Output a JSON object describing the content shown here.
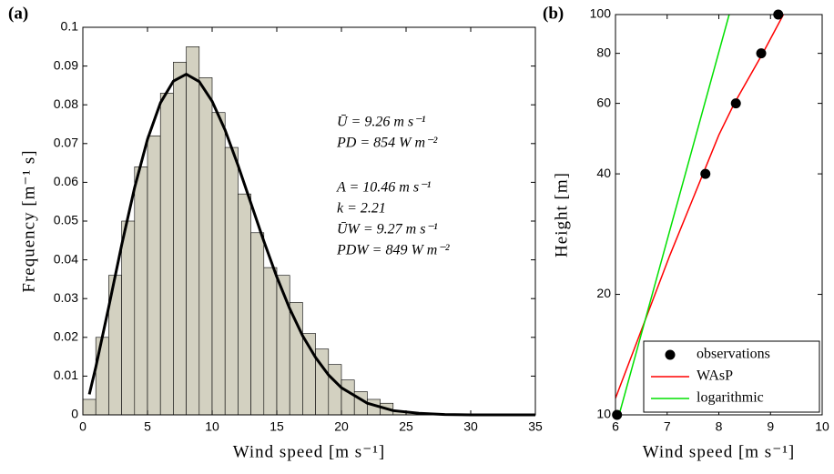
{
  "chart_data": [
    {
      "type": "histogram",
      "label": "(a)",
      "xlabel": "Wind speed [m s⁻¹]",
      "ylabel": "Frequency [m⁻¹ s]",
      "bins": [
        0,
        1,
        2,
        3,
        4,
        5,
        6,
        7,
        8,
        9,
        10,
        11,
        12,
        13,
        14,
        15,
        16,
        17,
        18,
        19,
        20,
        21,
        22,
        23,
        24,
        25,
        26
      ],
      "counts": [
        0.004,
        0.02,
        0.036,
        0.05,
        0.064,
        0.072,
        0.083,
        0.091,
        0.095,
        0.087,
        0.078,
        0.069,
        0.057,
        0.047,
        0.038,
        0.036,
        0.029,
        0.021,
        0.017,
        0.013,
        0.009,
        0.006,
        0.004,
        0.003,
        0.001,
        0.0005
      ],
      "color": "#d3d1c1",
      "fit": {
        "x": [
          0.5,
          1,
          2,
          3,
          4,
          5,
          6,
          7,
          8,
          9,
          10,
          11,
          12,
          13,
          14,
          15,
          16,
          17,
          18,
          19,
          20,
          22,
          24,
          26,
          28,
          30,
          35
        ],
        "values": [
          0.0053,
          0.0123,
          0.0278,
          0.0438,
          0.0586,
          0.0711,
          0.0805,
          0.0861,
          0.0879,
          0.086,
          0.0809,
          0.0735,
          0.0644,
          0.0546,
          0.0448,
          0.0356,
          0.0274,
          0.0204,
          0.0148,
          0.0103,
          0.007,
          0.003,
          0.0011,
          0.0004,
          0.0001,
          0.0,
          0.0
        ],
        "color": "#000000"
      },
      "annotations": [
        "Ū = 9.26 m s⁻¹",
        "PD = 854 W m⁻²",
        "A = 10.46 m s⁻¹",
        "k = 2.21",
        "ŪW = 9.27 m s⁻¹",
        "PDW = 849 W m⁻²"
      ],
      "xlim": [
        0,
        35
      ],
      "ylim": [
        0,
        0.1
      ],
      "xticks": [
        0,
        5,
        10,
        15,
        20,
        25,
        30,
        35
      ],
      "yticks": [
        0,
        0.01,
        0.02,
        0.03,
        0.04,
        0.05,
        0.06,
        0.07,
        0.08,
        0.09,
        0.1
      ]
    },
    {
      "type": "line",
      "label": "(b)",
      "xlabel": "Wind speed [m s⁻¹]",
      "ylabel": "Height [m]",
      "ylog": true,
      "legend": "lower right",
      "series": [
        {
          "name": "observations",
          "color": "#000000",
          "style": "markers",
          "x": [
            6.03,
            7.74,
            8.33,
            8.82,
            9.15
          ],
          "values": [
            10,
            40,
            60,
            80,
            100
          ]
        },
        {
          "name": "WAsP",
          "color": "#ff0000",
          "style": "line",
          "x": [
            6.0,
            7.05,
            8.0,
            8.3,
            8.85,
            9.25
          ],
          "values": [
            11,
            25,
            50,
            60,
            80,
            100
          ]
        },
        {
          "name": "logarithmic",
          "color": "#00e000",
          "style": "line",
          "x": [
            6.07,
            8.2
          ],
          "values": [
            10,
            100
          ]
        }
      ],
      "xlim": [
        6,
        10
      ],
      "ylim": [
        10,
        100
      ],
      "xticks": [
        6,
        7,
        8,
        9,
        10
      ],
      "yticks": [
        10,
        20,
        40,
        60,
        80,
        100
      ]
    }
  ]
}
